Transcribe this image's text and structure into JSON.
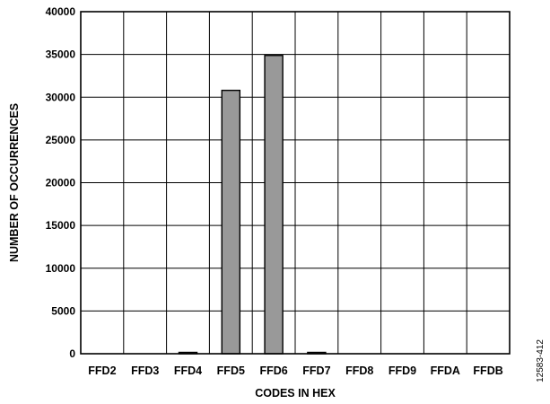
{
  "chart_data": {
    "type": "bar",
    "categories": [
      "FFD2",
      "FFD3",
      "FFD4",
      "FFD5",
      "FFD6",
      "FFD7",
      "FFD8",
      "FFD9",
      "FFDA",
      "FFDB"
    ],
    "values": [
      0,
      0,
      40,
      30800,
      34880,
      150,
      0,
      0,
      0,
      0
    ],
    "xlabel": "CODES IN HEX",
    "ylabel": "NUMBER OF OCCURRENCES",
    "ylim": [
      0,
      40000
    ],
    "yticks": [
      "0",
      "5000",
      "10000",
      "15000",
      "20000",
      "25000",
      "30000",
      "35000",
      "40000"
    ],
    "grid": true,
    "bar_color": "#999999",
    "figure_id": "12583-412"
  }
}
